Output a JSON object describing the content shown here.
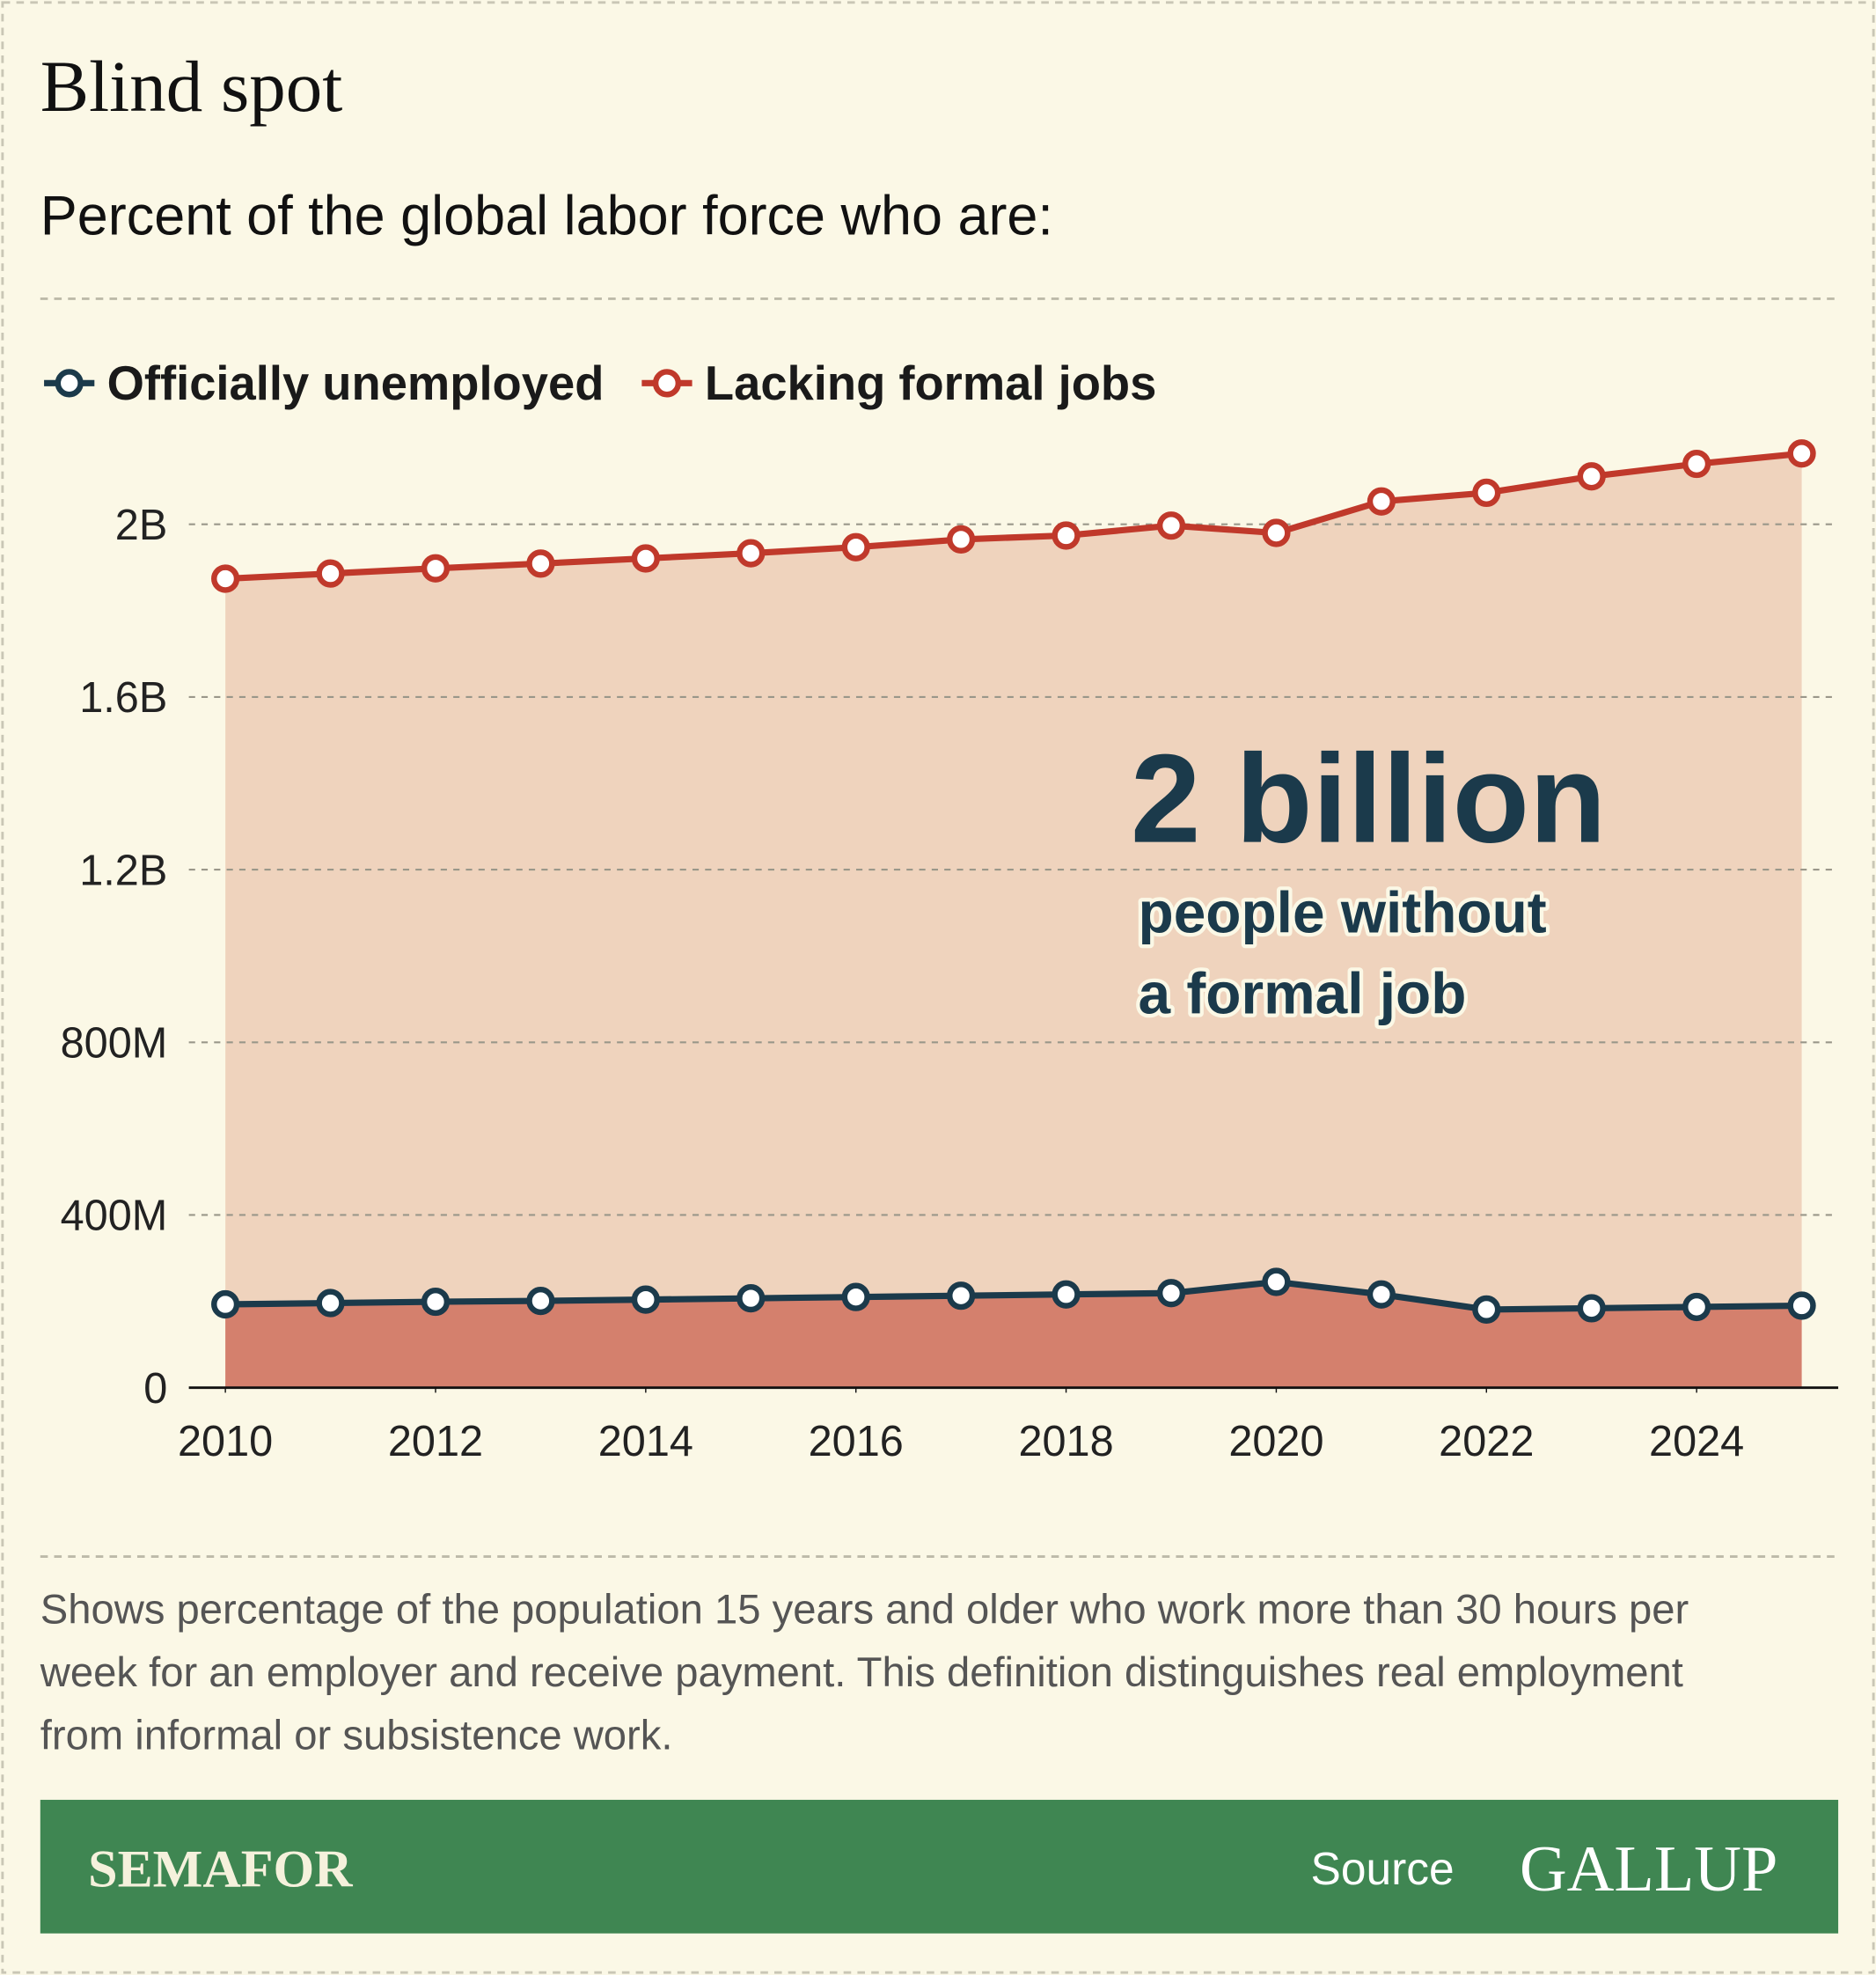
{
  "chart_data": {
    "type": "line",
    "title": "Blind spot",
    "subtitle": "Percent of the global labor force who are:",
    "x": [
      2010,
      2011,
      2012,
      2013,
      2014,
      2015,
      2016,
      2017,
      2018,
      2019,
      2020,
      2021,
      2022,
      2023,
      2024,
      2025
    ],
    "xlim": [
      2010,
      2025
    ],
    "xticks": [
      2010,
      2012,
      2014,
      2016,
      2018,
      2020,
      2022,
      2024
    ],
    "series": [
      {
        "name": "Officially unemployed",
        "color": "#1b3a4b",
        "area_color": "#d4806d",
        "values": [
          193000000,
          196000000,
          199000000,
          201000000,
          204000000,
          207000000,
          210000000,
          213000000,
          216000000,
          219000000,
          245000000,
          216000000,
          181000000,
          184000000,
          187000000,
          190000000
        ]
      },
      {
        "name": "Lacking formal jobs",
        "color": "#c0392b",
        "area_color": "#efd3bd",
        "values": [
          1874000000,
          1886000000,
          1898000000,
          1909000000,
          1921000000,
          1933000000,
          1947000000,
          1965000000,
          1974000000,
          1997000000,
          1980000000,
          2053000000,
          2073000000,
          2111000000,
          2140000000,
          2164000000
        ]
      }
    ],
    "ylim": [
      0,
      2200000000
    ],
    "yticks": [
      0,
      {
        "value": 400000000,
        "label": "400M"
      },
      {
        "value": 800000000,
        "label": "800M"
      },
      {
        "value": 1200000000,
        "label": "1.2B"
      },
      {
        "value": 1600000000,
        "label": "1.6B"
      },
      {
        "value": 2000000000,
        "label": "2B"
      }
    ],
    "grid": true,
    "legend": "top-left",
    "annotation": {
      "headline": "2 billion",
      "lines": [
        "people without",
        "a formal job"
      ]
    },
    "note": [
      "Shows percentage of the population 15 years and older who work more than 30 hours per",
      "week for an employer and receive payment. This definition distinguishes real employment",
      "from informal or subsistence work."
    ],
    "brand": "SEMAFOR",
    "source_label": "Source",
    "source": "GALLUP"
  }
}
